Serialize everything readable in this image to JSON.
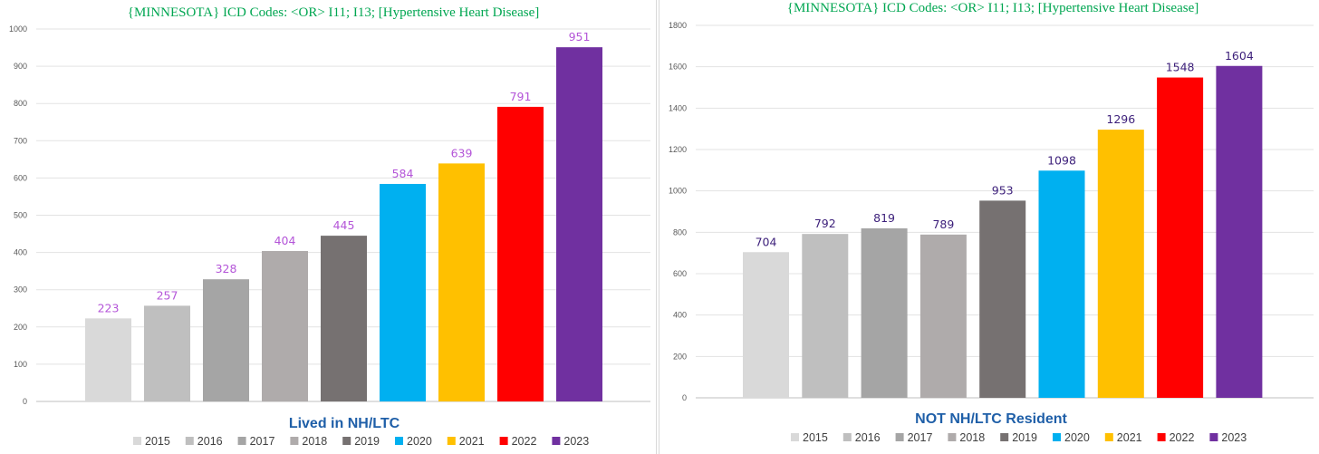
{
  "chart_data": [
    {
      "type": "bar",
      "title": "{MINNESOTA}  ICD Codes: <OR>  I11; I13;  [Hypertensive  Heart Disease]",
      "xlabel": "Lived in NH/LTC",
      "ylabel": "",
      "ylim": [
        0,
        1000
      ],
      "yticks": [
        0,
        100,
        200,
        300,
        400,
        500,
        600,
        700,
        800,
        900,
        1000
      ],
      "categories": [
        "2015",
        "2016",
        "2017",
        "2018",
        "2019",
        "2020",
        "2021",
        "2022",
        "2023"
      ],
      "values": [
        223,
        257,
        328,
        404,
        445,
        584,
        639,
        791,
        951
      ],
      "colors": [
        "#d9d9d9",
        "#bfbfbf",
        "#a5a5a5",
        "#afabab",
        "#767171",
        "#00b0f0",
        "#ffc000",
        "#ff0000",
        "#7030a0"
      ],
      "label_color": "#b455d8",
      "legend": "bottom",
      "grid": true
    },
    {
      "type": "bar",
      "title": "{MINNESOTA}  ICD Codes: <OR>  I11; I13;  [Hypertensive  Heart Disease]",
      "xlabel": "NOT NH/LTC Resident",
      "ylabel": "",
      "ylim": [
        0,
        1800
      ],
      "yticks": [
        0,
        200,
        400,
        600,
        800,
        1000,
        1200,
        1400,
        1600,
        1800
      ],
      "categories": [
        "2015",
        "2016",
        "2017",
        "2018",
        "2019",
        "2020",
        "2021",
        "2022",
        "2023"
      ],
      "values": [
        704,
        792,
        819,
        789,
        953,
        1098,
        1296,
        1548,
        1604
      ],
      "colors": [
        "#d9d9d9",
        "#bfbfbf",
        "#a5a5a5",
        "#afabab",
        "#767171",
        "#00b0f0",
        "#ffc000",
        "#ff0000",
        "#7030a0"
      ],
      "label_color": "#3c1f7a",
      "legend": "bottom",
      "grid": true
    }
  ]
}
